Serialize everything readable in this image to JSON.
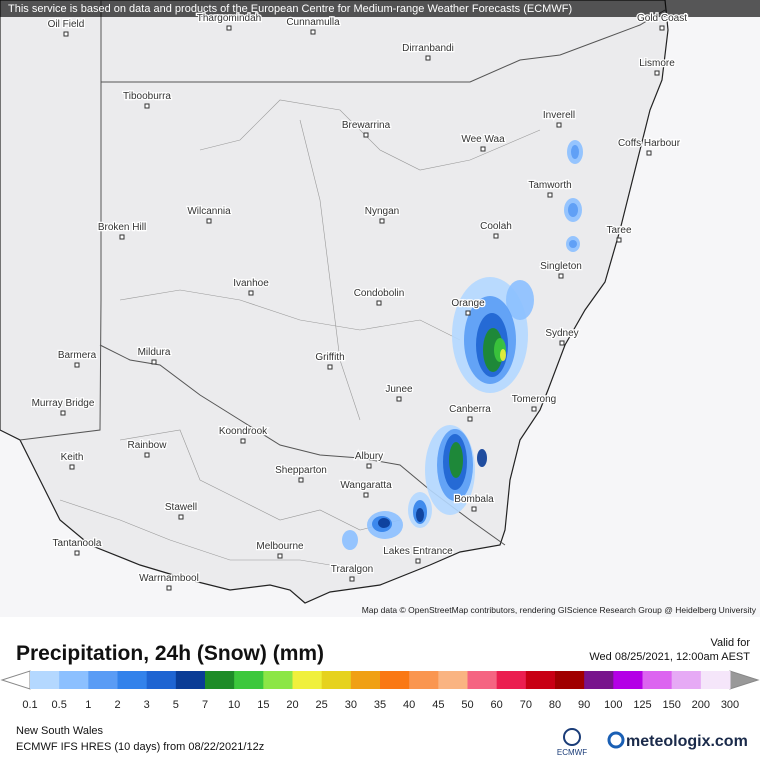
{
  "banner": "This service is based on data and products of the European Centre for Medium-range Weather Forecasts (ECMWF)",
  "places": [
    "Oil Field",
    "Thargomindah",
    "Cunnamulla",
    "Dirranbandi",
    "Gold Coast",
    "Lismore",
    "Tibooburra",
    "Brewarrina",
    "Inverell",
    "Wee Waa",
    "Coffs Harbour",
    "Tamworth",
    "Wilcannia",
    "Nyngan",
    "Broken Hill",
    "Coolah",
    "Taree",
    "Singleton",
    "Ivanhoe",
    "Condobolin",
    "Orange",
    "Sydney",
    "Barmera",
    "Mildura",
    "Griffith",
    "Junee",
    "Tomerong",
    "Murray Bridge",
    "Canberra",
    "Koondrook",
    "Rainbow",
    "Keith",
    "Albury",
    "Shepparton",
    "Wangaratta",
    "Bombala",
    "Stawell",
    "Tantanoola",
    "Melbourne",
    "Lakes Entrance",
    "Traralgon",
    "Warrnambool"
  ],
  "attribution": "Map data © OpenStreetMap contributors, rendering GIScience Research Group @ Heidelberg University",
  "title": "Precipitation, 24h (Snow) (mm)",
  "valid_label": "Valid for",
  "valid_time": "Wed 08/25/2021, 12:00am AEST",
  "legend": {
    "labels": [
      0.1,
      0.5,
      1,
      2,
      3,
      5,
      7,
      10,
      15,
      20,
      25,
      30,
      35,
      40,
      45,
      50,
      60,
      70,
      80,
      90,
      100,
      125,
      150,
      200,
      300
    ],
    "colors": [
      "#b4d8ff",
      "#8cc0ff",
      "#5a9cf5",
      "#3282eb",
      "#1e64d2",
      "#0a3c96",
      "#1e8c28",
      "#3cc83c",
      "#8ce646",
      "#f0f03c",
      "#e6d21e",
      "#f0a014",
      "#fa7814",
      "#fa9650",
      "#fab482",
      "#f56482",
      "#eb1e50",
      "#c80014",
      "#a00000",
      "#78148c",
      "#b400e6",
      "#dc64f0",
      "#e6aaf5",
      "#f5e6fa"
    ]
  },
  "region": "New South Wales",
  "model": "ECMWF IFS HRES (10 days) from 08/22/2021/12z",
  "logo_ecmwf": "ECMWF",
  "logo_site": "meteologix.com"
}
